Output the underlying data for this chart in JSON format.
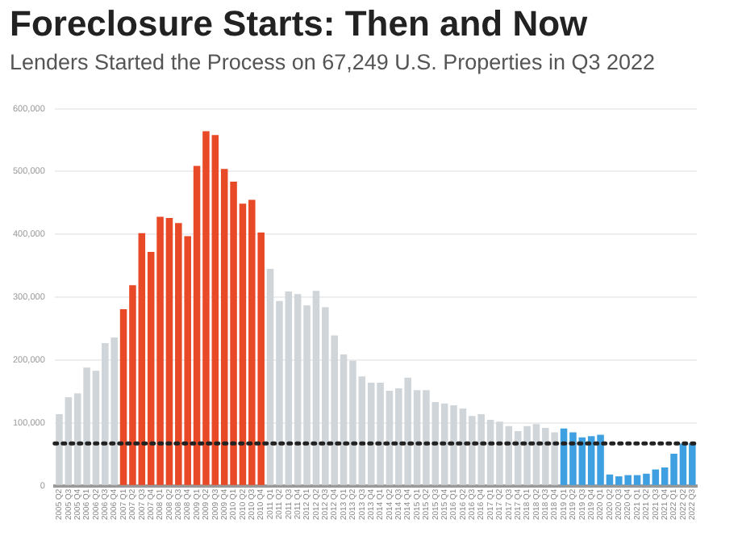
{
  "chart_data": {
    "type": "bar",
    "title": "Foreclosure Starts: Then and Now",
    "subtitle": "Lenders Started the Process on 67,249 U.S. Properties in Q3 2022",
    "categories": [
      "2005 Q2",
      "2005 Q3",
      "2005 Q4",
      "2006 Q1",
      "2006 Q2",
      "2006 Q3",
      "2006 Q4",
      "2007 Q1",
      "2007 Q2",
      "2007 Q3",
      "2007 Q4",
      "2008 Q1",
      "2008 Q2",
      "2008 Q3",
      "2008 Q4",
      "2009 Q1",
      "2009 Q2",
      "2009 Q3",
      "2009 Q4",
      "2010 Q1",
      "2010 Q2",
      "2010 Q3",
      "2010 Q4",
      "2011 Q1",
      "2011 Q2",
      "2011 Q3",
      "2011 Q4",
      "2012 Q1",
      "2012 Q2",
      "2012 Q3",
      "2012 Q4",
      "2013 Q1",
      "2013 Q2",
      "2013 Q3",
      "2013 Q4",
      "2014 Q1",
      "2014 Q2",
      "2014 Q3",
      "2014 Q4",
      "2015 Q1",
      "2015 Q2",
      "2015 Q3",
      "2015 Q4",
      "2016 Q1",
      "2016 Q2",
      "2016 Q3",
      "2016 Q4",
      "2017 Q1",
      "2017 Q2",
      "2017 Q3",
      "2017 Q4",
      "2018 Q1",
      "2018 Q2",
      "2018 Q3",
      "2018 Q4",
      "2019 Q1",
      "2019 Q2",
      "2019 Q3",
      "2019 Q4",
      "2020 Q1",
      "2020 Q2",
      "2020 Q3",
      "2020 Q4",
      "2021 Q1",
      "2021 Q2",
      "2021 Q3",
      "2021 Q4",
      "2022 Q1",
      "2022 Q2",
      "2022 Q3"
    ],
    "values": [
      114000,
      141000,
      147000,
      188000,
      183000,
      227000,
      236000,
      281000,
      319000,
      402000,
      372000,
      428000,
      426000,
      418000,
      397000,
      509000,
      564000,
      558000,
      504000,
      484000,
      449000,
      455000,
      403000,
      345000,
      294000,
      309000,
      305000,
      287000,
      310000,
      284000,
      239000,
      209000,
      199000,
      174000,
      164000,
      164000,
      151000,
      155000,
      172000,
      152000,
      152000,
      133000,
      131000,
      128000,
      123000,
      111000,
      114000,
      105000,
      102000,
      95000,
      87000,
      95000,
      98000,
      92000,
      85000,
      91000,
      85000,
      77000,
      79000,
      81000,
      18000,
      15000,
      17000,
      17000,
      19000,
      26000,
      29000,
      51000,
      67000,
      67249
    ],
    "colors": [
      "#cfd5d9",
      "#cfd5d9",
      "#cfd5d9",
      "#cfd5d9",
      "#cfd5d9",
      "#cfd5d9",
      "#cfd5d9",
      "#e84a27",
      "#e84a27",
      "#e84a27",
      "#e84a27",
      "#e84a27",
      "#e84a27",
      "#e84a27",
      "#e84a27",
      "#e84a27",
      "#e84a27",
      "#e84a27",
      "#e84a27",
      "#e84a27",
      "#e84a27",
      "#e84a27",
      "#e84a27",
      "#cfd5d9",
      "#cfd5d9",
      "#cfd5d9",
      "#cfd5d9",
      "#cfd5d9",
      "#cfd5d9",
      "#cfd5d9",
      "#cfd5d9",
      "#cfd5d9",
      "#cfd5d9",
      "#cfd5d9",
      "#cfd5d9",
      "#cfd5d9",
      "#cfd5d9",
      "#cfd5d9",
      "#cfd5d9",
      "#cfd5d9",
      "#cfd5d9",
      "#cfd5d9",
      "#cfd5d9",
      "#cfd5d9",
      "#cfd5d9",
      "#cfd5d9",
      "#cfd5d9",
      "#cfd5d9",
      "#cfd5d9",
      "#cfd5d9",
      "#cfd5d9",
      "#cfd5d9",
      "#cfd5d9",
      "#cfd5d9",
      "#cfd5d9",
      "#3ea0e0",
      "#3ea0e0",
      "#3ea0e0",
      "#3ea0e0",
      "#3ea0e0",
      "#3ea0e0",
      "#3ea0e0",
      "#3ea0e0",
      "#3ea0e0",
      "#3ea0e0",
      "#3ea0e0",
      "#3ea0e0",
      "#3ea0e0",
      "#3ea0e0",
      "#3ea0e0"
    ],
    "ylim": [
      0,
      600000
    ],
    "yticks": [
      {
        "value": 0,
        "label": "0"
      },
      {
        "value": 100000,
        "label": "100,000"
      },
      {
        "value": 200000,
        "label": "200,000"
      },
      {
        "value": 300000,
        "label": "300,000"
      },
      {
        "value": 400000,
        "label": "400,000"
      },
      {
        "value": 500000,
        "label": "500,000"
      },
      {
        "value": 600000,
        "label": "600,000"
      }
    ],
    "grid": "y",
    "legend": false,
    "ref_lines": [
      {
        "axis": "y",
        "value": 67249,
        "color": "#222222",
        "line_style": "dotted"
      }
    ]
  }
}
